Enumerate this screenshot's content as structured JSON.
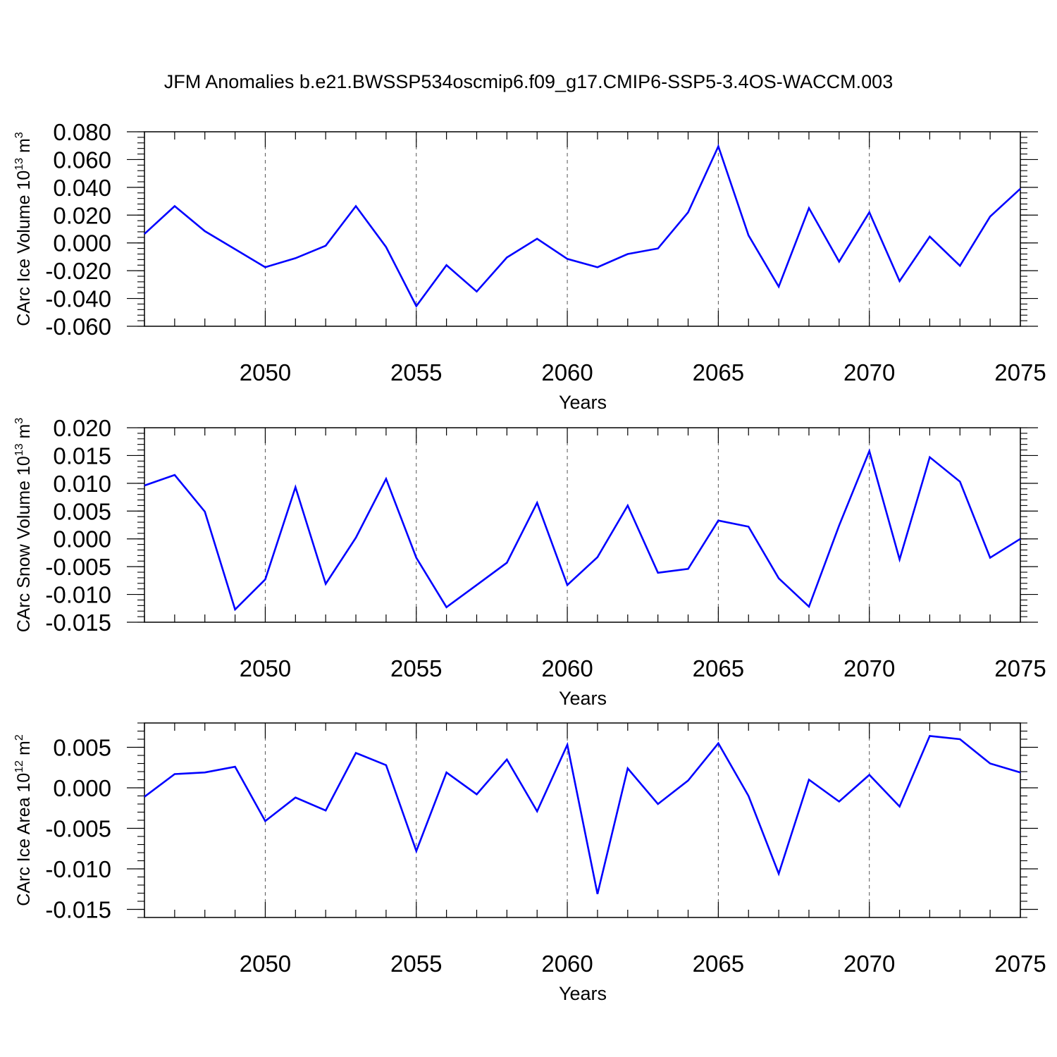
{
  "title": "JFM Anomalies b.e21.BWSSP534oscmip6.f09_g17.CMIP6-SSP5-3.4OS-WACCM.003",
  "line_color": "#0000ff",
  "chart_data": [
    {
      "type": "line",
      "ylabel": "CArc Ice Volume 10",
      "ylabel_exp": "13",
      "ylabel_unit": " m",
      "ylabel_unit_exp": "3",
      "xlabel": "Years",
      "xlim": [
        2046,
        2075
      ],
      "ylim": [
        -0.06,
        0.08
      ],
      "yticks": [
        -0.06,
        -0.04,
        -0.02,
        0.0,
        0.02,
        0.04,
        0.06,
        0.08
      ],
      "ytick_labels": [
        "-0.060",
        "-0.040",
        "-0.020",
        "0.000",
        "0.020",
        "0.040",
        "0.060",
        "0.080"
      ],
      "xticks": [
        2050,
        2055,
        2060,
        2065,
        2070,
        2075
      ],
      "xtick_labels": [
        "2050",
        "2055",
        "2060",
        "2065",
        "2070",
        "2075"
      ],
      "grid": "dashed vertical at major x ticks",
      "x": [
        2046,
        2047,
        2048,
        2049,
        2050,
        2051,
        2052,
        2053,
        2054,
        2055,
        2056,
        2057,
        2058,
        2059,
        2060,
        2061,
        2062,
        2063,
        2064,
        2065,
        2066,
        2067,
        2068,
        2069,
        2070,
        2071,
        2072,
        2073,
        2074,
        2075
      ],
      "values": [
        0.0065,
        0.0265,
        0.0085,
        -0.0045,
        -0.0175,
        -0.011,
        -0.002,
        0.0265,
        -0.003,
        -0.0455,
        -0.016,
        -0.035,
        -0.0105,
        0.003,
        -0.0115,
        -0.0175,
        -0.008,
        -0.004,
        0.022,
        0.0695,
        0.0055,
        -0.0315,
        0.025,
        -0.0135,
        0.022,
        -0.0275,
        0.0045,
        -0.0165,
        0.019,
        0.039
      ]
    },
    {
      "type": "line",
      "ylabel": "CArc Snow Volume 10",
      "ylabel_exp": "13",
      "ylabel_unit": " m",
      "ylabel_unit_exp": "3",
      "xlabel": "Years",
      "xlim": [
        2046,
        2075
      ],
      "ylim": [
        -0.015,
        0.02
      ],
      "yticks": [
        -0.015,
        -0.01,
        -0.005,
        0.0,
        0.005,
        0.01,
        0.015,
        0.02
      ],
      "ytick_labels": [
        "-0.015",
        "-0.010",
        "-0.005",
        "0.000",
        "0.005",
        "0.010",
        "0.015",
        "0.020"
      ],
      "xticks": [
        2050,
        2055,
        2060,
        2065,
        2070,
        2075
      ],
      "xtick_labels": [
        "2050",
        "2055",
        "2060",
        "2065",
        "2070",
        "2075"
      ],
      "grid": "dashed vertical at major x ticks",
      "x": [
        2046,
        2047,
        2048,
        2049,
        2050,
        2051,
        2052,
        2053,
        2054,
        2055,
        2056,
        2057,
        2058,
        2059,
        2060,
        2061,
        2062,
        2063,
        2064,
        2065,
        2066,
        2067,
        2068,
        2069,
        2070,
        2071,
        2072,
        2073,
        2074,
        2075
      ],
      "values": [
        0.0096,
        0.0115,
        0.0049,
        -0.0127,
        -0.0073,
        0.0093,
        -0.0081,
        0.0002,
        0.0108,
        -0.0034,
        -0.0123,
        -0.0083,
        -0.0043,
        0.0065,
        -0.0083,
        -0.0033,
        0.006,
        -0.0061,
        -0.0054,
        0.0033,
        0.0022,
        -0.0071,
        -0.0122,
        0.0024,
        0.0158,
        -0.0037,
        0.0147,
        0.0103,
        -0.0034,
        0.0
      ]
    },
    {
      "type": "line",
      "ylabel": "CArc Ice Area 10",
      "ylabel_exp": "12",
      "ylabel_unit": " m",
      "ylabel_unit_exp": "2",
      "xlabel": "Years",
      "xlim": [
        2046,
        2075
      ],
      "ylim": [
        -0.016,
        0.008
      ],
      "yticks": [
        -0.015,
        -0.01,
        -0.005,
        0.0,
        0.005
      ],
      "ytick_labels": [
        "-0.015",
        "-0.010",
        "-0.005",
        "0.000",
        "0.005"
      ],
      "xticks": [
        2050,
        2055,
        2060,
        2065,
        2070,
        2075
      ],
      "xtick_labels": [
        "2050",
        "2055",
        "2060",
        "2065",
        "2070",
        "2075"
      ],
      "grid": "dashed vertical at major x ticks",
      "x": [
        2046,
        2047,
        2048,
        2049,
        2050,
        2051,
        2052,
        2053,
        2054,
        2055,
        2056,
        2057,
        2058,
        2059,
        2060,
        2061,
        2062,
        2063,
        2064,
        2065,
        2066,
        2067,
        2068,
        2069,
        2070,
        2071,
        2072,
        2073,
        2074,
        2075
      ],
      "values": [
        -0.0011,
        0.0017,
        0.0019,
        0.0026,
        -0.0041,
        -0.0012,
        -0.0028,
        0.0043,
        0.0028,
        -0.0078,
        0.0019,
        -0.0008,
        0.0035,
        -0.0029,
        0.0053,
        -0.0131,
        0.0024,
        -0.002,
        0.0009,
        0.0055,
        -0.001,
        -0.0106,
        0.001,
        -0.0017,
        0.0016,
        -0.0023,
        0.0064,
        0.006,
        0.003,
        0.0019
      ]
    }
  ]
}
